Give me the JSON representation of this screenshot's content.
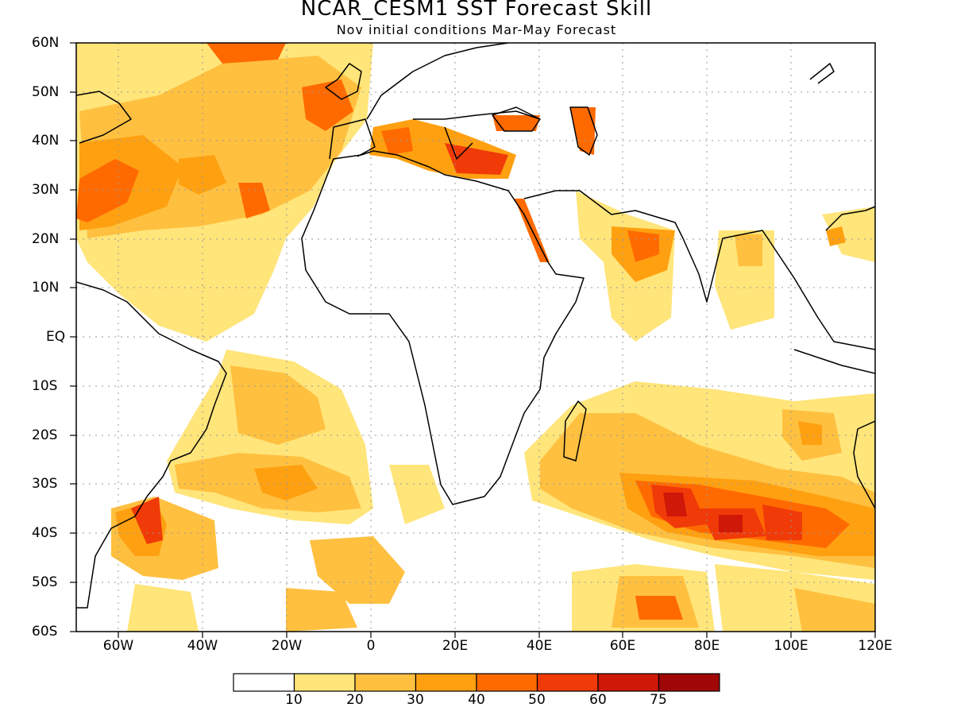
{
  "header": {
    "title": "NCAR_CESM1 SST Forecast Skill",
    "subtitle": "Nov initial conditions  Mar-May Forecast"
  },
  "map": {
    "lon_range": [
      -70,
      120
    ],
    "lat_range": [
      -60,
      60
    ],
    "lat_labels": [
      "60N",
      "50N",
      "40N",
      "30N",
      "20N",
      "10N",
      "EQ",
      "10S",
      "20S",
      "30S",
      "40S",
      "50S",
      "60S"
    ],
    "lon_labels": [
      "60W",
      "40W",
      "20W",
      "0",
      "20E",
      "40E",
      "60E",
      "80E",
      "100E",
      "120E"
    ]
  },
  "colorbar": {
    "labels": [
      "10",
      "20",
      "30",
      "40",
      "50",
      "60",
      "75"
    ],
    "colors": [
      "#ffffff",
      "#ffe57a",
      "#ffc040",
      "#ffa010",
      "#ff6a00",
      "#f03a08",
      "#d01808",
      "#a00808"
    ]
  }
}
